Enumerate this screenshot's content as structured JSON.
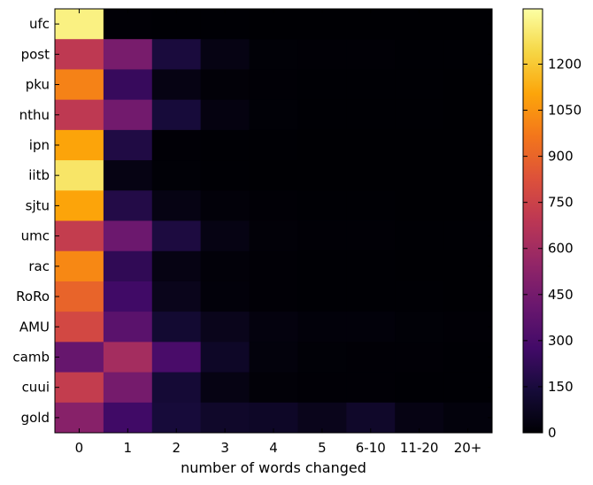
{
  "chart_data": {
    "type": "heatmap",
    "title": "",
    "xlabel": "number of words changed",
    "ylabel": "",
    "x_categories": [
      "0",
      "1",
      "2",
      "3",
      "4",
      "5",
      "6-10",
      "11-20",
      "20+"
    ],
    "y_categories": [
      "ufc",
      "post",
      "pku",
      "nthu",
      "ipn",
      "iitb",
      "sjtu",
      "umc",
      "rac",
      "RoRo",
      "AMU",
      "camb",
      "cuui",
      "gold"
    ],
    "values": [
      [
        1330,
        5,
        3,
        2,
        1,
        1,
        1,
        1,
        1
      ],
      [
        700,
        460,
        150,
        40,
        8,
        4,
        4,
        3,
        2
      ],
      [
        1000,
        240,
        40,
        10,
        4,
        2,
        2,
        2,
        1
      ],
      [
        700,
        440,
        140,
        30,
        8,
        3,
        3,
        2,
        1
      ],
      [
        1100,
        170,
        6,
        3,
        2,
        1,
        1,
        1,
        1
      ],
      [
        1290,
        40,
        8,
        3,
        1,
        1,
        1,
        1,
        1
      ],
      [
        1100,
        180,
        40,
        12,
        4,
        2,
        2,
        1,
        1
      ],
      [
        720,
        420,
        160,
        40,
        10,
        4,
        4,
        3,
        2
      ],
      [
        1020,
        220,
        40,
        12,
        4,
        2,
        2,
        1,
        1
      ],
      [
        900,
        270,
        60,
        15,
        5,
        3,
        3,
        2,
        1
      ],
      [
        780,
        360,
        120,
        60,
        25,
        15,
        15,
        8,
        4
      ],
      [
        400,
        610,
        300,
        90,
        20,
        8,
        6,
        4,
        2
      ],
      [
        720,
        450,
        130,
        40,
        10,
        5,
        5,
        3,
        2
      ],
      [
        510,
        270,
        140,
        100,
        90,
        60,
        100,
        40,
        20
      ]
    ],
    "colorbar": {
      "min": 0,
      "max": 1380,
      "ticks": [
        0,
        150,
        300,
        450,
        600,
        750,
        900,
        1050,
        1200
      ],
      "colormap": "inferno"
    }
  }
}
